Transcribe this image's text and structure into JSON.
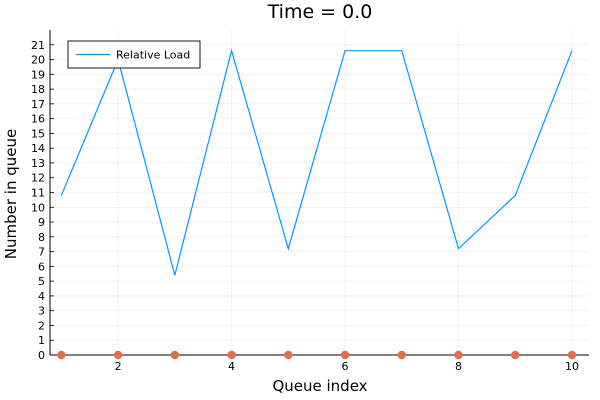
{
  "chart_data": {
    "type": "line",
    "title": "Time = 0.0",
    "xlabel": "Queue index",
    "ylabel": "Number in queue",
    "xlim": [
      0.8,
      10.3
    ],
    "ylim": [
      0,
      22
    ],
    "x_ticks": [
      2,
      4,
      6,
      8,
      10
    ],
    "y_ticks": [
      0,
      1,
      2,
      3,
      4,
      5,
      6,
      7,
      8,
      9,
      10,
      11,
      12,
      13,
      14,
      15,
      16,
      17,
      18,
      19,
      20,
      21
    ],
    "grid": true,
    "legend_position": "top-left",
    "series": [
      {
        "name": "Relative Load",
        "kind": "line",
        "color": "#009AFA",
        "x": [
          1,
          2,
          3,
          4,
          5,
          6,
          7,
          8,
          9,
          10
        ],
        "y": [
          10.8,
          20.0,
          5.4,
          20.6,
          7.2,
          20.6,
          20.6,
          7.2,
          10.8,
          20.6
        ]
      },
      {
        "kind": "scatter",
        "color": "#E26F46",
        "x": [
          1,
          2,
          3,
          4,
          5,
          6,
          7,
          8,
          9,
          10
        ],
        "y": [
          0,
          0,
          0,
          0,
          0,
          0,
          0,
          0,
          0,
          0
        ]
      }
    ]
  }
}
